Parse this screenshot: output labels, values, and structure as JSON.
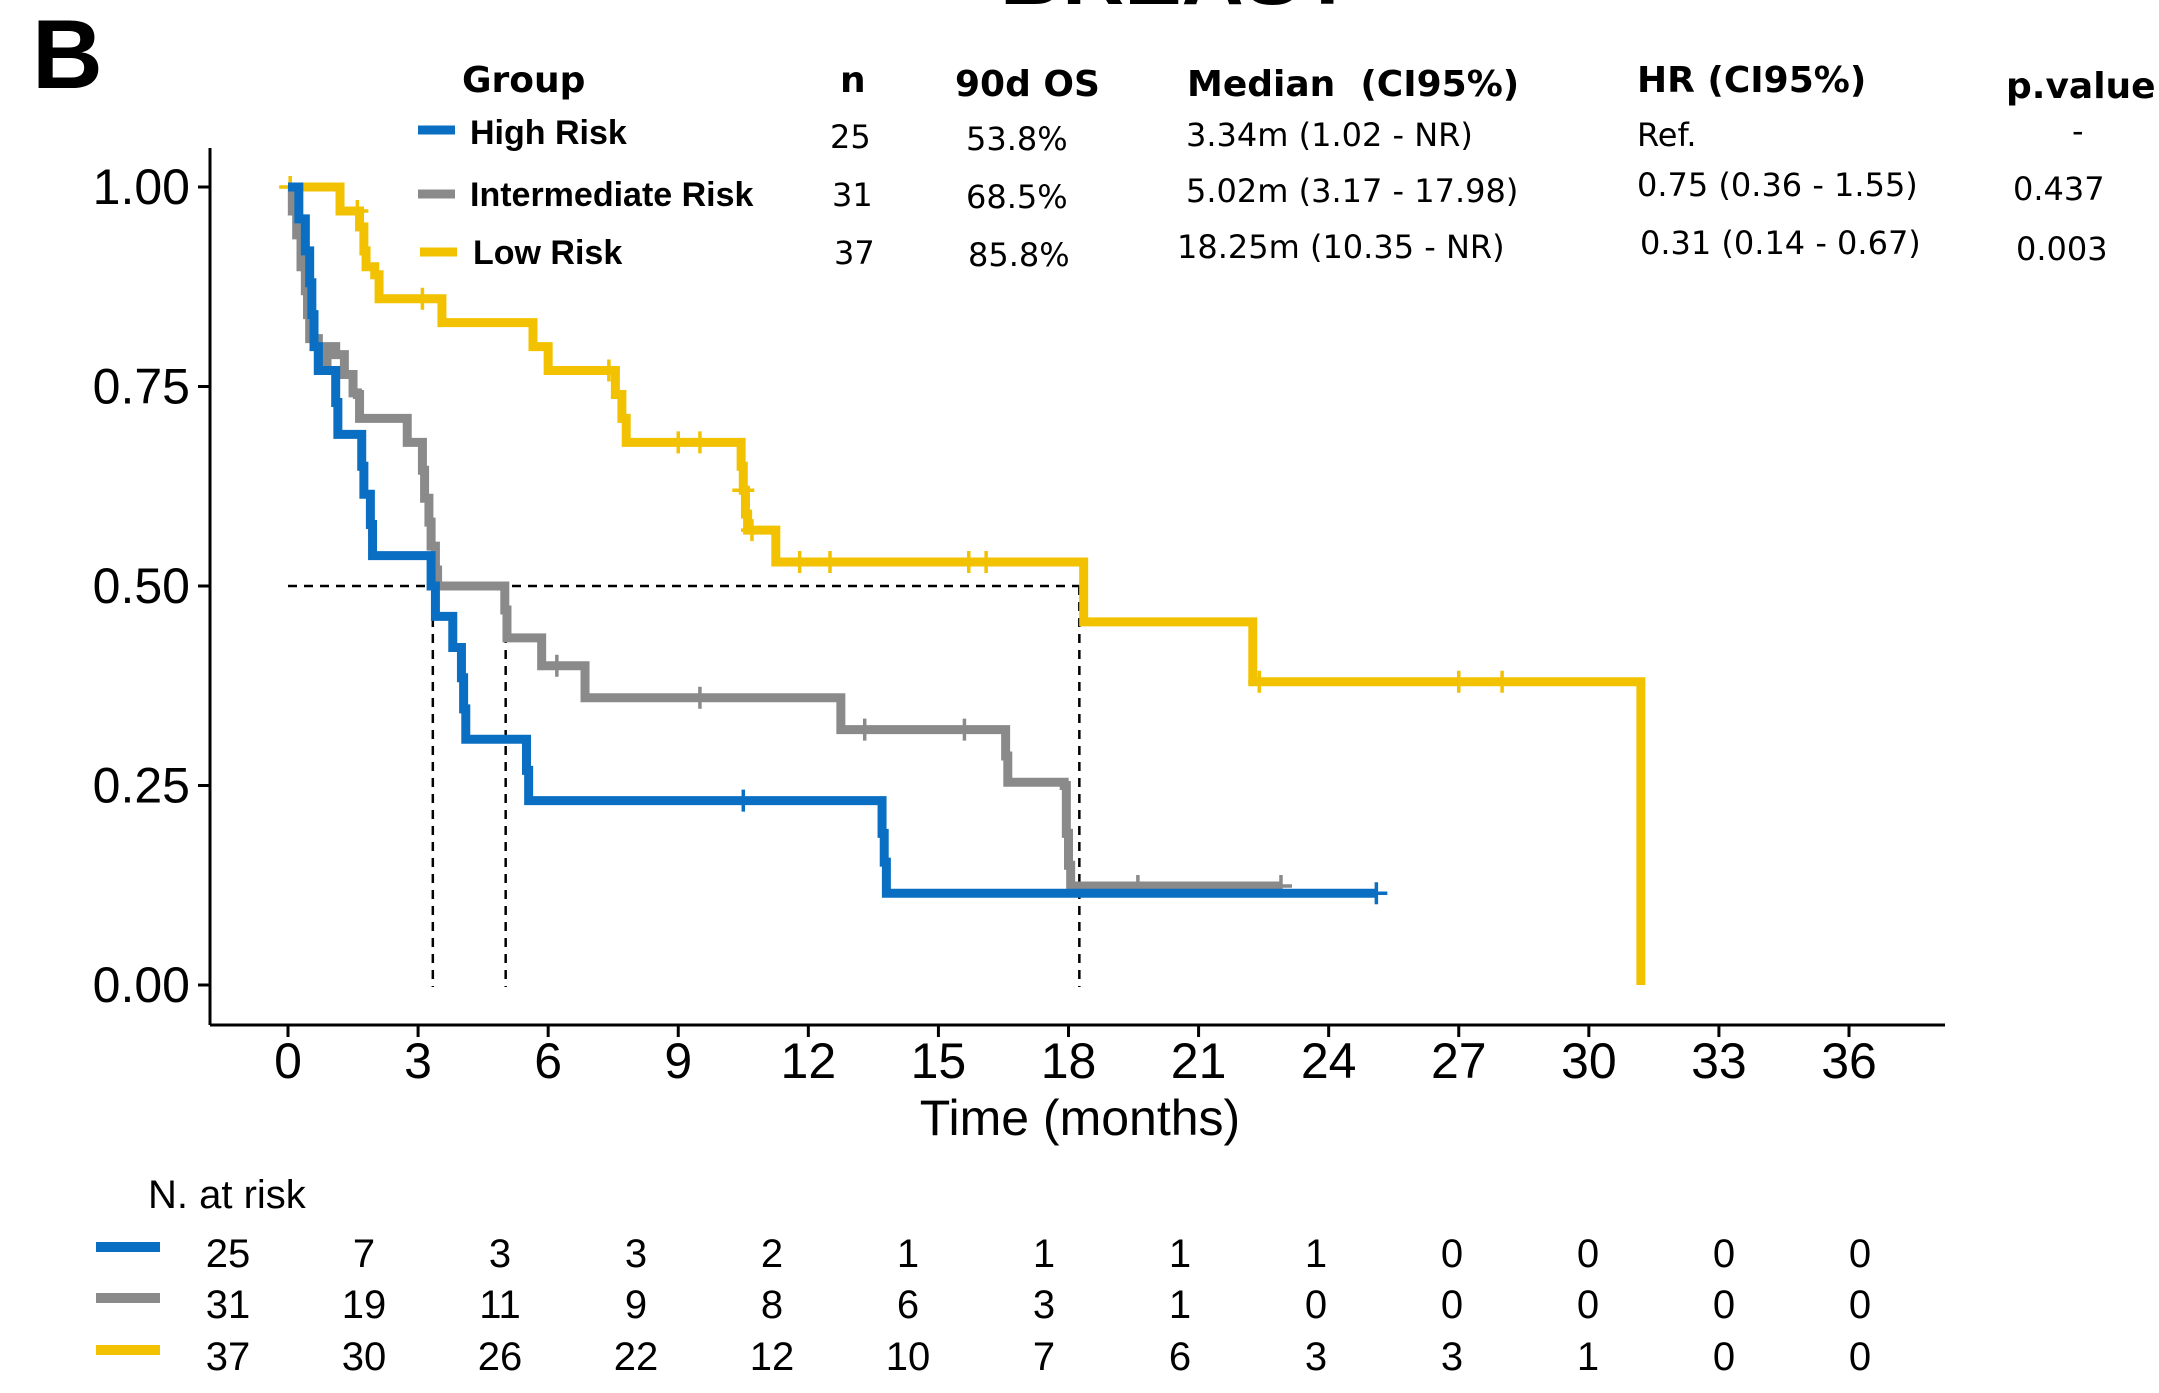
{
  "panel_label": "B",
  "title_fragment": "BREAST",
  "summary_table": {
    "headers": [
      "Group",
      "n",
      "90d OS",
      "Median  (CI95%)",
      "HR (CI95%)",
      "p.value"
    ],
    "rows": [
      {
        "group": "High Risk",
        "n": "25",
        "os90": "53.8%",
        "median": "3.34m (1.02 - NR)",
        "hr": "Ref.",
        "p": "-",
        "color": "#0a6fc2"
      },
      {
        "group": "Intermediate Risk",
        "n": "31",
        "os90": "68.5%",
        "median": "5.02m (3.17 - 17.98)",
        "hr": "0.75 (0.36 - 1.55)",
        "p": "0.437",
        "color": "#8a8a8a"
      },
      {
        "group": "Low Risk",
        "n": "37",
        "os90": "85.8%",
        "median": "18.25m (10.35 - NR)",
        "hr": "0.31 (0.14 - 0.67)",
        "p": "0.003",
        "color": "#f2c200"
      }
    ]
  },
  "chart_data": {
    "type": "line",
    "subtype": "kaplan-meier step",
    "xlabel": "Time (months)",
    "ylabel": "",
    "xlim": [
      0,
      36
    ],
    "ylim": [
      0,
      1
    ],
    "x_ticks": [
      0,
      3,
      6,
      9,
      12,
      15,
      18,
      21,
      24,
      27,
      30,
      33,
      36
    ],
    "y_ticks": [
      "0.00",
      "0.25",
      "0.50",
      "0.75",
      "1.00"
    ],
    "y_tick_values": [
      0,
      0.25,
      0.5,
      0.75,
      1.0
    ],
    "grid": false,
    "median_reference": {
      "y": 0.5,
      "x_end": 18.25,
      "medians": [
        3.34,
        5.02,
        18.25
      ]
    },
    "series": [
      {
        "name": "High Risk",
        "color": "#0a6fc2",
        "steps": [
          [
            0,
            1.0
          ],
          [
            0.25,
            0.96
          ],
          [
            0.4,
            0.92
          ],
          [
            0.5,
            0.88
          ],
          [
            0.55,
            0.84
          ],
          [
            0.6,
            0.8
          ],
          [
            0.7,
            0.77
          ],
          [
            1.1,
            0.73
          ],
          [
            1.15,
            0.69
          ],
          [
            1.7,
            0.65
          ],
          [
            1.75,
            0.615
          ],
          [
            1.9,
            0.577
          ],
          [
            1.95,
            0.538
          ],
          [
            3.3,
            0.5
          ],
          [
            3.4,
            0.462
          ],
          [
            3.8,
            0.423
          ],
          [
            4.0,
            0.385
          ],
          [
            4.05,
            0.346
          ],
          [
            4.1,
            0.308
          ],
          [
            5.5,
            0.269
          ],
          [
            5.55,
            0.231
          ],
          [
            13.7,
            0.19
          ],
          [
            13.75,
            0.154
          ],
          [
            13.8,
            0.115
          ],
          [
            25.1,
            0.115
          ]
        ],
        "censor_x": [
          10.5,
          25.1
        ]
      },
      {
        "name": "Intermediate Risk",
        "color": "#8a8a8a",
        "steps": [
          [
            0,
            1.0
          ],
          [
            0.1,
            0.97
          ],
          [
            0.2,
            0.94
          ],
          [
            0.3,
            0.9
          ],
          [
            0.4,
            0.87
          ],
          [
            0.45,
            0.84
          ],
          [
            0.5,
            0.81
          ],
          [
            0.7,
            0.77
          ],
          [
            0.9,
            0.8
          ],
          [
            1.1,
            0.79
          ],
          [
            1.3,
            0.765
          ],
          [
            1.5,
            0.742
          ],
          [
            1.6,
            0.74
          ],
          [
            1.65,
            0.71
          ],
          [
            2.7,
            0.71
          ],
          [
            2.75,
            0.68
          ],
          [
            3.1,
            0.645
          ],
          [
            3.15,
            0.61
          ],
          [
            3.25,
            0.58
          ],
          [
            3.3,
            0.55
          ],
          [
            3.4,
            0.52
          ],
          [
            3.45,
            0.5
          ],
          [
            5.0,
            0.47
          ],
          [
            5.05,
            0.435
          ],
          [
            5.8,
            0.435
          ],
          [
            5.85,
            0.4
          ],
          [
            6.8,
            0.4
          ],
          [
            6.85,
            0.36
          ],
          [
            12.7,
            0.36
          ],
          [
            12.75,
            0.32
          ],
          [
            16.5,
            0.32
          ],
          [
            16.55,
            0.287
          ],
          [
            16.6,
            0.254
          ],
          [
            17.9,
            0.25
          ],
          [
            17.95,
            0.19
          ],
          [
            18.0,
            0.15
          ],
          [
            18.05,
            0.124
          ],
          [
            22.9,
            0.124
          ]
        ],
        "censor_x": [
          6.2,
          9.5,
          13.3,
          15.6,
          19.6,
          22.9
        ]
      },
      {
        "name": "Low Risk",
        "color": "#f2c200",
        "steps": [
          [
            0,
            1.0
          ],
          [
            1.1,
            1.0
          ],
          [
            1.2,
            0.97
          ],
          [
            1.6,
            0.97
          ],
          [
            1.65,
            0.95
          ],
          [
            1.75,
            0.92
          ],
          [
            1.8,
            0.9
          ],
          [
            2.0,
            0.89
          ],
          [
            2.1,
            0.86
          ],
          [
            3.5,
            0.86
          ],
          [
            3.55,
            0.83
          ],
          [
            5.6,
            0.83
          ],
          [
            5.65,
            0.8
          ],
          [
            5.95,
            0.8
          ],
          [
            6.0,
            0.77
          ],
          [
            7.5,
            0.77
          ],
          [
            7.55,
            0.74
          ],
          [
            7.7,
            0.71
          ],
          [
            7.8,
            0.68
          ],
          [
            10.4,
            0.68
          ],
          [
            10.45,
            0.65
          ],
          [
            10.5,
            0.62
          ],
          [
            10.55,
            0.59
          ],
          [
            10.6,
            0.57
          ],
          [
            11.2,
            0.57
          ],
          [
            11.25,
            0.53
          ],
          [
            18.3,
            0.53
          ],
          [
            18.35,
            0.455
          ],
          [
            22.2,
            0.455
          ],
          [
            22.25,
            0.38
          ],
          [
            31.15,
            0.38
          ],
          [
            31.2,
            0.0
          ]
        ],
        "censor_x": [
          0.05,
          1.6,
          3.1,
          7.4,
          9.0,
          9.5,
          10.5,
          10.7,
          11.8,
          12.5,
          15.7,
          16.1,
          22.4,
          27.0,
          28.0
        ]
      }
    ]
  },
  "risk_table": {
    "title": "N. at risk",
    "rows": [
      {
        "color": "#0a6fc2",
        "values": [
          "25",
          "7",
          "3",
          "3",
          "2",
          "1",
          "1",
          "1",
          "1",
          "0",
          "0",
          "0",
          "0"
        ]
      },
      {
        "color": "#8a8a8a",
        "values": [
          "31",
          "19",
          "11",
          "9",
          "8",
          "6",
          "3",
          "1",
          "0",
          "0",
          "0",
          "0",
          "0"
        ]
      },
      {
        "color": "#f2c200",
        "values": [
          "37",
          "30",
          "26",
          "22",
          "12",
          "10",
          "7",
          "6",
          "3",
          "3",
          "1",
          "0",
          "0"
        ]
      }
    ]
  }
}
